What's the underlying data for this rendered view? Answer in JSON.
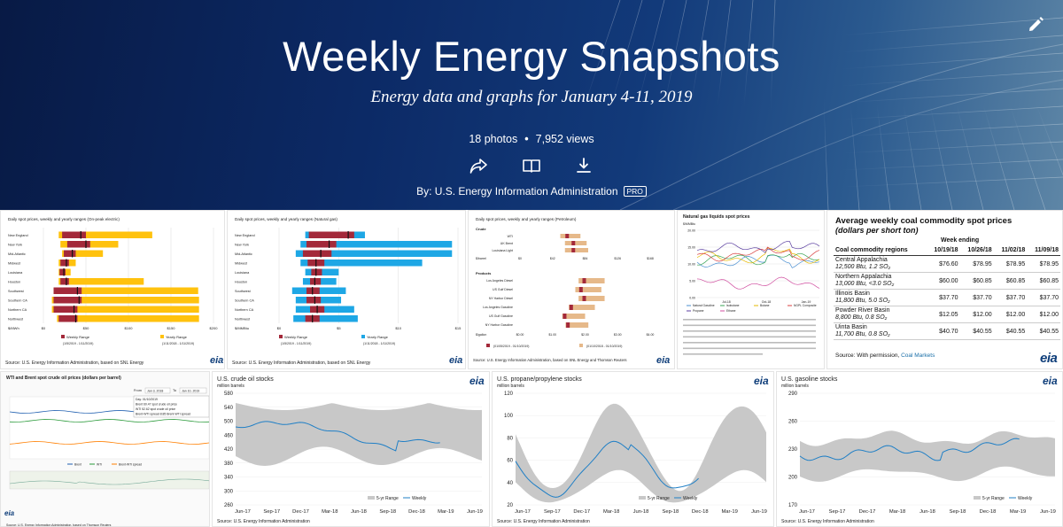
{
  "album": {
    "title": "Weekly Energy Snapshots",
    "subtitle": "Energy data and graphs for January 4-11, 2019",
    "photo_count": "18 photos",
    "view_count": "7,952 views",
    "separator": "•",
    "author": "By: U.S. Energy Information Administration",
    "badge": "PRO",
    "actions": [
      "share-icon",
      "book-icon",
      "download-icon"
    ],
    "edit_icon": "pencil-icon"
  },
  "colors": {
    "hero_dark": "#081a45",
    "red_bar": "#a3293a",
    "yellow_bar": "#ffc20e",
    "blue_bar": "#1ea7e5",
    "tan_bar": "#e6b98a",
    "weekly_line": "#1f7fc6",
    "range_band": "#c8c8c8"
  },
  "thumbs": {
    "electric": {
      "title": "Daily spot prices, weekly and yearly ranges (On-peak electric)",
      "regions": [
        "New England",
        "New York",
        "Mid-Atlantic",
        "Midwest",
        "Louisiana",
        "Houston",
        "Southwest",
        "Southern CA",
        "Northern CA",
        "Northwest"
      ],
      "xticks": [
        "$0",
        "$50",
        "$100",
        "$150",
        "$200"
      ],
      "unit": "$/MWh",
      "legend": [
        "Weekly Range",
        "Yearly Range"
      ],
      "legend_dates": [
        "(1/5/2019 - 1/11/2019)",
        "(1/11/2018 - 1/11/2019)"
      ],
      "source": "Source: U.S. Energy Information Administration, based on SNL Energy"
    },
    "natgas": {
      "title": "Daily spot prices, weekly and yearly ranges (Natural gas)",
      "regions": [
        "New England",
        "New York",
        "Mid-Atlantic",
        "Midwest",
        "Louisiana",
        "Houston",
        "Southwest",
        "Southern CA",
        "Northern CA",
        "Northwest"
      ],
      "xticks": [
        "$0",
        "$5",
        "$10",
        "$15"
      ],
      "unit": "$/MMBtu",
      "legend": [
        "Weekly Range",
        "Yearly Range"
      ],
      "legend_dates": [
        "(1/5/2019 - 1/11/2019)",
        "(1/11/2018 - 1/11/2019)"
      ],
      "source": "Source: U.S. Energy Information Administration, based on SNL Energy"
    },
    "petroleum": {
      "title": "Daily spot prices, weekly and yearly ranges (Petroleum)",
      "crude_label": "Crude",
      "crude": [
        "WTI",
        "UK Brent",
        "Louisiana Light"
      ],
      "crude_unit": "$/barrel",
      "crude_ticks": [
        "$0",
        "$42",
        "$84",
        "$126",
        "$168"
      ],
      "products_label": "Products",
      "products": [
        "Los Angeles Diesel",
        "US Gulf Diesel",
        "NY Harbor Diesel",
        "Los Angeles Gasoline",
        "US Gulf Gasoline",
        "NY Harbor Gasoline"
      ],
      "products_unit": "$/gallon",
      "products_ticks": [
        "$0.00",
        "$1.00",
        "$2.00",
        "$3.00",
        "$4.00"
      ],
      "legend_dates": [
        "(01/05/2019 - 01/10/2019)",
        "(01/10/2018 - 01/10/2019)"
      ],
      "source": "Source: U.S. Energy Information Administration, based on SNL Energy and Thomson Reuters"
    },
    "ngl": {
      "title": "Natural gas liquids spot prices",
      "unit": "$/MMBtu",
      "yticks": [
        "20.00",
        "15.00",
        "10.00",
        "5.00",
        "0.00"
      ],
      "xticks": [
        "Jul-18",
        "Oct-18",
        "Jan-19"
      ],
      "legend": [
        "Natural Gasoline",
        "Isobutane",
        "Butane",
        "NGPL Composite",
        "Propane",
        "Ethane"
      ]
    },
    "coal": {
      "title": "Average weekly coal commodity spot prices",
      "subtitle": "(dollars per short ton)",
      "week_ending": "Week ending",
      "region_header": "Coal commodity regions",
      "dates": [
        "10/19/18",
        "10/26/18",
        "11/02/18",
        "11/09/18"
      ],
      "rows": [
        {
          "name": "Central Appalachia",
          "spec": "12,500 Btu, 1.2 SO₂",
          "values": [
            "$76.60",
            "$78.95",
            "$78.95",
            "$78.95"
          ]
        },
        {
          "name": "Northern Appalachia",
          "spec": "13,000 Btu, <3.0 SO₂",
          "values": [
            "$60.00",
            "$60.85",
            "$60.85",
            "$60.85"
          ]
        },
        {
          "name": "Illinois Basin",
          "spec": "11,800 Btu, 5.0 SO₂",
          "values": [
            "$37.70",
            "$37.70",
            "$37.70",
            "$37.70"
          ]
        },
        {
          "name": "Powder River Basin",
          "spec": "8,800 Btu, 0.8 SO₂",
          "values": [
            "$12.05",
            "$12.00",
            "$12.00",
            "$12.00"
          ]
        },
        {
          "name": "Uinta Basin",
          "spec": "11,700 Btu, 0.8 SO₂",
          "values": [
            "$40.70",
            "$40.55",
            "$40.55",
            "$40.55"
          ]
        }
      ],
      "source_prefix": "Source: With permission,",
      "source_link": "Coal Markets",
      "logo": "eia"
    },
    "wti": {
      "title": "WTI and Brent spot crude oil prices (dollars per barrel)",
      "from_label": "From",
      "from_value": "Jan 3, 2018",
      "to_label": "To",
      "to_value": "Jan 10, 2019",
      "tooltip": [
        "Day: 01/10/2019",
        "Brent 60.47 spot crude oil price",
        "WTI 52.62 spot crude oil price",
        "Brent-WTI spread 8.85 Brent-WTI spread"
      ],
      "legend": [
        "Brent",
        "WTI",
        "Brent-WTI spread"
      ],
      "source": "Source: U.S. Energy Information Administration, based on Thomson Reuters"
    },
    "crude": {
      "title": "U.S. crude oil stocks",
      "unit": "million barrels",
      "yticks": [
        "580",
        "540",
        "500",
        "460",
        "420",
        "380",
        "340",
        "300",
        "260"
      ],
      "xticks": [
        "Jun-17",
        "Sep-17",
        "Dec-17",
        "Mar-18",
        "Jun-18",
        "Sep-18",
        "Dec-18",
        "Mar-19",
        "Jun-19"
      ],
      "legend": [
        "5-yr Range",
        "Weekly"
      ],
      "source": "Source: U.S. Energy Information Administration"
    },
    "propane": {
      "title": "U.S. propane/propylene stocks",
      "unit": "million barrels",
      "yticks": [
        "120",
        "100",
        "80",
        "60",
        "40",
        "20"
      ],
      "xticks": [
        "Jun-17",
        "Sep-17",
        "Dec-17",
        "Mar-18",
        "Jun-18",
        "Sep-18",
        "Dec-18",
        "Mar-19",
        "Jun-19"
      ],
      "legend": [
        "5-yr Range",
        "Weekly"
      ],
      "source": "Source: U.S. Energy Information Administration"
    },
    "gasoline": {
      "title": "U.S. gasoline stocks",
      "unit": "million barrels",
      "yticks": [
        "290",
        "260",
        "230",
        "200",
        "170"
      ],
      "xticks": [
        "Jun-17",
        "Sep-17",
        "Dec-17",
        "Mar-18",
        "Jun-18",
        "Sep-18",
        "Dec-18",
        "Mar-19",
        "Jun-19"
      ],
      "legend": [
        "5-yr Range",
        "Weekly"
      ],
      "source": "Source: U.S. Energy Information Administration"
    }
  }
}
